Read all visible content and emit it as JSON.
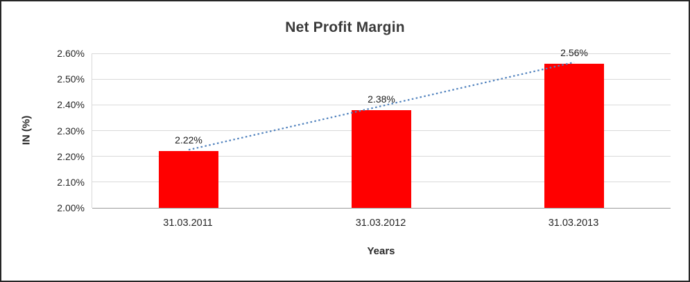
{
  "chart_data": {
    "type": "bar",
    "title": "Net Profit Margin",
    "xlabel": "Years",
    "ylabel": "IN (%)",
    "categories": [
      "31.03.2011",
      "31.03.2012",
      "31.03.2013"
    ],
    "values": [
      2.22,
      2.38,
      2.56
    ],
    "data_labels": [
      "2.22%",
      "2.38%",
      "2.56%"
    ],
    "ylim": [
      2.0,
      2.6
    ],
    "ytick_step": 0.1,
    "ytick_labels": [
      "2.00%",
      "2.10%",
      "2.20%",
      "2.30%",
      "2.40%",
      "2.50%",
      "2.60%"
    ],
    "grid": true,
    "legend": "none",
    "bar_color": "#ff0000",
    "trendline": {
      "style": "dotted",
      "color": "#4f81bd"
    }
  }
}
